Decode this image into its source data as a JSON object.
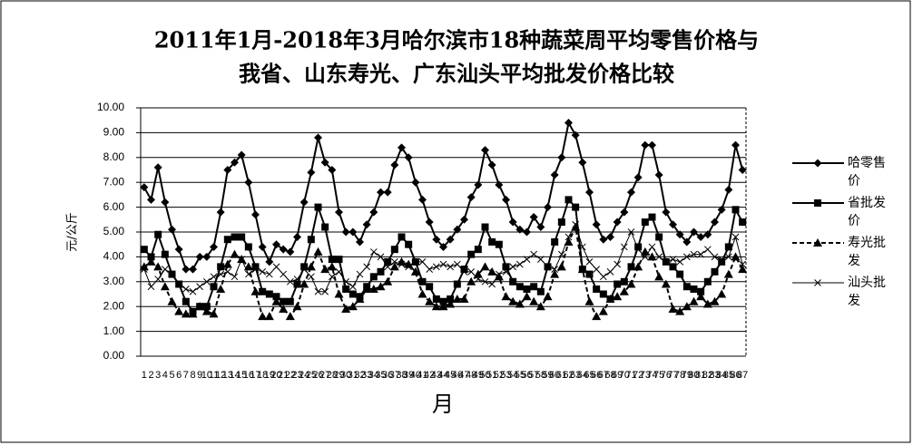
{
  "chart_data": {
    "type": "line",
    "title": [
      "2011年1月-2018年3月哈尔滨市18种蔬菜周平均零售价格与",
      "我省、山东寿光、广东汕头平均批发价格比较"
    ],
    "y_label": "元/公斤",
    "x_label": "月",
    "categories": [
      "1",
      "2",
      "3",
      "4",
      "5",
      "6",
      "7",
      "8",
      "9",
      "10",
      "11",
      "12",
      "13",
      "14",
      "15",
      "16",
      "17",
      "18",
      "19",
      "20",
      "21",
      "22",
      "23",
      "24",
      "25",
      "26",
      "27",
      "28",
      "29",
      "30",
      "31",
      "32",
      "33",
      "34",
      "35",
      "36",
      "37",
      "38",
      "39",
      "40",
      "41",
      "42",
      "43",
      "44",
      "45",
      "46",
      "47",
      "48",
      "49",
      "50",
      "51",
      "52",
      "53",
      "54",
      "55",
      "56",
      "57",
      "58",
      "59",
      "60",
      "61",
      "62",
      "63",
      "64",
      "65",
      "66",
      "67",
      "68",
      "69",
      "70",
      "71",
      "72",
      "73",
      "74",
      "75",
      "76",
      "77",
      "78",
      "79",
      "80",
      "81",
      "82",
      "83",
      "84",
      "85",
      "86",
      "87"
    ],
    "ylim": [
      0,
      10
    ],
    "yticks": [
      {
        "value": 0,
        "label": "0.00"
      },
      {
        "value": 1,
        "label": "1.00"
      },
      {
        "value": 2,
        "label": "2.00"
      },
      {
        "value": 3,
        "label": "3.00"
      },
      {
        "value": 4,
        "label": "4.00"
      },
      {
        "value": 5,
        "label": "5.00"
      },
      {
        "value": 6,
        "label": "6.00"
      },
      {
        "value": 7,
        "label": "7.00"
      },
      {
        "value": 8,
        "label": "8.00"
      },
      {
        "value": 9,
        "label": "9.00"
      },
      {
        "value": 10,
        "label": "10.00"
      }
    ],
    "grid": true,
    "legend": "right",
    "series": [
      {
        "name": "哈零售价",
        "color": "#000000",
        "marker": "diamond",
        "dashed": false,
        "values": [
          6.8,
          6.3,
          7.6,
          6.2,
          5.1,
          4.3,
          3.5,
          3.5,
          4.0,
          4.0,
          4.4,
          5.8,
          7.5,
          7.8,
          8.1,
          7.0,
          5.7,
          4.4,
          3.8,
          4.5,
          4.3,
          4.2,
          4.8,
          6.2,
          7.4,
          8.8,
          7.8,
          7.5,
          5.8,
          5.0,
          5.0,
          4.6,
          5.3,
          5.8,
          6.6,
          6.6,
          7.7,
          8.4,
          8.0,
          7.0,
          6.3,
          5.4,
          4.7,
          4.4,
          4.7,
          5.1,
          5.5,
          6.4,
          6.9,
          8.3,
          7.7,
          6.9,
          6.3,
          5.4,
          5.1,
          5.0,
          5.6,
          5.2,
          6.0,
          7.3,
          8.0,
          9.4,
          8.9,
          7.8,
          6.6,
          5.3,
          4.7,
          4.8,
          5.4,
          5.8,
          6.6,
          7.2,
          8.5,
          8.5,
          7.3,
          5.8,
          5.3,
          4.9,
          4.6,
          5.0,
          4.8,
          4.9,
          5.4,
          5.9,
          6.7,
          8.5,
          7.5
        ]
      },
      {
        "name": "省批发价",
        "color": "#000000",
        "marker": "square",
        "dashed": false,
        "values": [
          4.3,
          4.0,
          4.9,
          4.1,
          3.3,
          2.9,
          2.2,
          1.8,
          2.0,
          2.0,
          2.8,
          3.6,
          4.7,
          4.8,
          4.8,
          4.4,
          3.6,
          2.6,
          2.5,
          2.4,
          2.2,
          2.2,
          2.9,
          3.6,
          4.7,
          6.0,
          5.2,
          3.9,
          3.9,
          2.7,
          2.5,
          2.4,
          2.8,
          3.2,
          3.4,
          3.8,
          4.3,
          4.8,
          4.5,
          3.8,
          3.0,
          2.8,
          2.3,
          2.2,
          2.3,
          2.9,
          3.5,
          4.1,
          4.3,
          5.2,
          4.6,
          4.5,
          3.6,
          3.0,
          2.8,
          2.7,
          2.8,
          2.6,
          3.6,
          4.6,
          5.4,
          6.3,
          6.0,
          3.5,
          3.3,
          2.7,
          2.5,
          2.3,
          2.9,
          3.0,
          3.6,
          4.4,
          5.4,
          5.6,
          4.8,
          3.8,
          3.6,
          3.3,
          2.8,
          2.7,
          2.6,
          3.0,
          3.4,
          3.8,
          4.4,
          5.9,
          5.4
        ]
      },
      {
        "name": "寿光批发",
        "color": "#000000",
        "marker": "triangle",
        "dashed": true,
        "values": [
          3.6,
          3.8,
          3.6,
          2.8,
          2.2,
          1.8,
          1.7,
          1.7,
          2.0,
          1.8,
          1.7,
          2.7,
          3.7,
          4.1,
          3.9,
          3.6,
          2.6,
          1.6,
          1.6,
          2.2,
          1.9,
          1.6,
          2.0,
          2.9,
          3.6,
          4.2,
          3.5,
          3.6,
          2.5,
          1.9,
          2.0,
          2.3,
          2.7,
          2.7,
          2.8,
          3.0,
          3.6,
          3.8,
          3.7,
          3.4,
          2.5,
          2.2,
          2.0,
          2.0,
          2.1,
          2.3,
          2.3,
          3.0,
          3.3,
          3.6,
          3.4,
          3.2,
          2.4,
          2.2,
          2.1,
          2.4,
          2.2,
          2.0,
          2.4,
          3.3,
          3.6,
          4.6,
          5.2,
          3.5,
          2.2,
          1.6,
          1.8,
          2.3,
          2.4,
          2.6,
          2.9,
          3.6,
          4.2,
          4.0,
          3.2,
          2.9,
          1.9,
          1.8,
          2.0,
          2.2,
          2.4,
          2.1,
          2.2,
          2.5,
          3.3,
          4.0,
          3.5
        ]
      },
      {
        "name": "汕头批发",
        "color": "#000000",
        "marker": "cross",
        "dashed": false,
        "values": [
          3.5,
          2.8,
          3.1,
          3.5,
          3.3,
          2.9,
          2.7,
          2.6,
          2.8,
          3.0,
          3.2,
          3.3,
          3.4,
          3.2,
          3.9,
          3.3,
          3.5,
          3.4,
          3.3,
          3.6,
          3.3,
          3.0,
          3.1,
          3.5,
          3.2,
          2.6,
          2.6,
          3.2,
          3.4,
          3.0,
          2.8,
          3.3,
          3.6,
          4.2,
          4.0,
          3.6,
          3.8,
          3.7,
          3.6,
          3.8,
          3.8,
          3.5,
          3.6,
          3.7,
          3.6,
          3.7,
          3.4,
          3.4,
          3.1,
          3.0,
          2.9,
          3.3,
          3.4,
          3.6,
          3.7,
          3.9,
          4.1,
          3.9,
          3.6,
          3.5,
          4.1,
          4.8,
          5.3,
          4.4,
          3.8,
          3.5,
          3.2,
          3.4,
          3.7,
          4.4,
          5.0,
          4.3,
          4.0,
          4.4,
          4.0,
          3.8,
          3.9,
          3.8,
          4.0,
          4.1,
          4.1,
          4.3,
          4.0,
          3.9,
          4.0,
          4.8,
          3.7
        ]
      }
    ]
  }
}
